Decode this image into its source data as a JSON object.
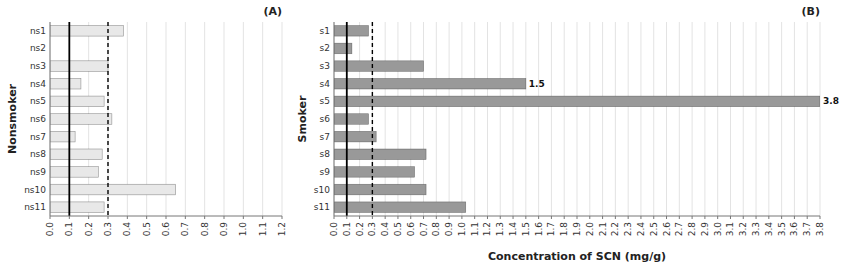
{
  "chart_data": [
    {
      "type": "bar",
      "orientation": "horizontal",
      "title": "(A)",
      "ylabel": "Nonsmoker",
      "categories": [
        "ns1",
        "ns2",
        "ns3",
        "ns4",
        "ns5",
        "ns6",
        "ns7",
        "ns8",
        "ns9",
        "ns10",
        "ns11"
      ],
      "values": [
        0.38,
        0.0,
        0.3,
        0.16,
        0.28,
        0.32,
        0.13,
        0.27,
        0.25,
        0.65,
        0.28
      ],
      "color": "#e8e8e8",
      "xlim": [
        0.0,
        1.2
      ],
      "xticks": [
        {
          "value": 0,
          "label": "0.0"
        },
        0.1,
        0.2,
        0.3,
        0.4,
        0.5,
        0.6,
        0.7,
        0.8,
        0.9,
        {
          "value": 1,
          "label": "1.0"
        },
        1.1,
        1.2
      ],
      "grid": true,
      "reference_lines": [
        {
          "value": 0.1,
          "line_style": "solid"
        },
        {
          "value": 0.3,
          "line_style": "dashed"
        }
      ]
    },
    {
      "type": "bar",
      "orientation": "horizontal",
      "title": "(B)",
      "ylabel": "Smoker",
      "xlabel": "Concentration of SCN (mg/g)",
      "categories": [
        "s1",
        "s2",
        "s3",
        "s4",
        "s5",
        "s6",
        "s7",
        "s8",
        "s9",
        "s10",
        "s11"
      ],
      "values": [
        0.27,
        0.14,
        0.7,
        1.5,
        3.8,
        0.27,
        0.33,
        0.72,
        0.63,
        0.72,
        1.03
      ],
      "color": "#999999",
      "xlim": [
        0.0,
        3.8
      ],
      "xticks": [
        {
          "value": 0,
          "label": "0.0"
        },
        0.1,
        0.2,
        0.3,
        0.4,
        0.5,
        0.6,
        0.7,
        0.8,
        0.9,
        {
          "value": 1,
          "label": "1.0"
        },
        1.1,
        1.2,
        1.3,
        1.4,
        1.5,
        1.6,
        1.7,
        1.8,
        1.9,
        {
          "value": 2,
          "label": "2.0"
        },
        2.1,
        2.2,
        2.3,
        2.4,
        2.5,
        2.6,
        2.7,
        2.8,
        2.9,
        {
          "value": 3,
          "label": "3.0"
        },
        3.1,
        3.2,
        3.3,
        3.4,
        3.5,
        3.6,
        3.7,
        3.8
      ],
      "grid": true,
      "reference_lines": [
        {
          "value": 0.1,
          "line_style": "solid"
        },
        {
          "value": 0.3,
          "line_style": "dashed"
        }
      ],
      "annotations": [
        {
          "category": "s4",
          "text": "1.5"
        },
        {
          "category": "s5",
          "text": "3.8"
        }
      ]
    }
  ]
}
